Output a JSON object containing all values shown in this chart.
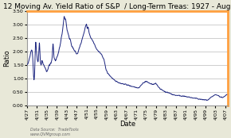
{
  "title": "12 Moving Av. Yield Ratio of S&P  / Long-Term Treas: 1927 - Aug 2007",
  "xlabel": "Date",
  "ylabel": "Ratio",
  "data_source": "Data Source:  TradeTools\nwww.QVMgroup.com",
  "x_start": 1927,
  "x_end": 2008.0,
  "ylim": [
    0.0,
    3.5
  ],
  "yticks": [
    0.0,
    0.5,
    1.0,
    1.5,
    2.0,
    2.5,
    3.0,
    3.5
  ],
  "xtick_years": [
    1927,
    1931,
    1935,
    1939,
    1943,
    1947,
    1951,
    1955,
    1959,
    1963,
    1967,
    1971,
    1975,
    1979,
    1983,
    1987,
    1991,
    1995,
    1999,
    2003,
    2007
  ],
  "orange_color": "#FFA040",
  "background_color": "#e8e8d8",
  "plot_bg_color": "#ffffff",
  "line_color": "#1a237e",
  "grid_color": "#bbbbbb",
  "title_fontsize": 6.5,
  "label_fontsize": 6.0,
  "tick_fontsize": 4.5
}
